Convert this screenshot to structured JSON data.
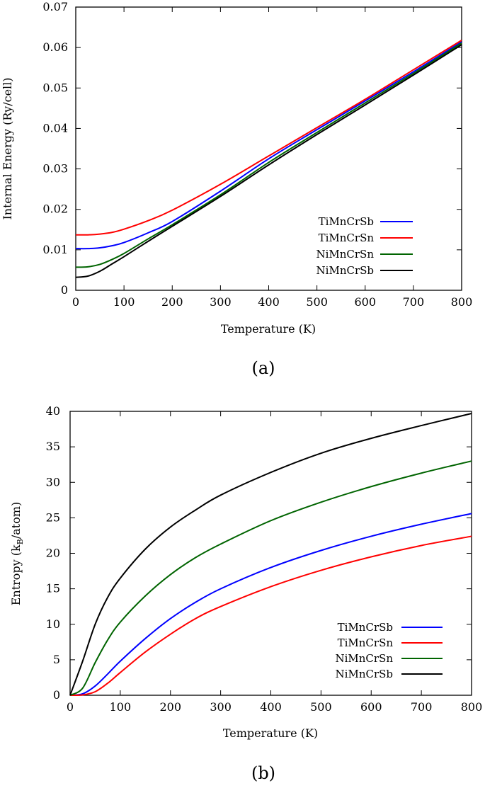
{
  "chart_data": [
    {
      "type": "line",
      "title": "",
      "xlabel": "Temperature (K)",
      "ylabel": "Internal Energy (Ry/cell)",
      "xlim": [
        0,
        800
      ],
      "ylim": [
        0,
        0.07
      ],
      "xticks": [
        "0",
        "100",
        "200",
        "300",
        "400",
        "500",
        "600",
        "700",
        "800"
      ],
      "yticks": [
        "0",
        "0.01",
        "0.02",
        "0.03",
        "0.04",
        "0.05",
        "0.06",
        "0.07"
      ],
      "legend_position": "bottom-right",
      "caption": "(a)",
      "series": [
        {
          "name": "TiMnCrSb",
          "color": "#0000ff",
          "x": [
            0,
            25,
            50,
            75,
            100,
            150,
            200,
            300,
            400,
            500,
            600,
            700,
            800
          ],
          "y": [
            0.0103,
            0.0103,
            0.0105,
            0.011,
            0.0118,
            0.0142,
            0.017,
            0.0245,
            0.0325,
            0.0397,
            0.0468,
            0.054,
            0.0614
          ]
        },
        {
          "name": "TiMnCrSn",
          "color": "#ff0000",
          "x": [
            0,
            25,
            50,
            75,
            100,
            150,
            200,
            300,
            400,
            500,
            600,
            700,
            800
          ],
          "y": [
            0.0137,
            0.0137,
            0.0139,
            0.0143,
            0.0151,
            0.0172,
            0.0198,
            0.0262,
            0.0332,
            0.0402,
            0.0472,
            0.0545,
            0.0618
          ]
        },
        {
          "name": "NiMnCrSn",
          "color": "#006400",
          "x": [
            0,
            25,
            50,
            75,
            100,
            150,
            200,
            300,
            400,
            500,
            600,
            700,
            800
          ],
          "y": [
            0.0057,
            0.0058,
            0.0064,
            0.0076,
            0.0091,
            0.0127,
            0.0162,
            0.0236,
            0.0316,
            0.039,
            0.0463,
            0.0536,
            0.0611
          ]
        },
        {
          "name": "NiMnCrSb",
          "color": "#000000",
          "x": [
            0,
            25,
            50,
            75,
            100,
            150,
            200,
            300,
            400,
            500,
            600,
            700,
            800
          ],
          "y": [
            0.0032,
            0.0035,
            0.0047,
            0.0065,
            0.0083,
            0.0121,
            0.0158,
            0.0232,
            0.031,
            0.0385,
            0.0458,
            0.0532,
            0.0607
          ]
        }
      ]
    },
    {
      "type": "line",
      "title": "",
      "xlabel": "Temperature (K)",
      "ylabel": "Entropy (k_B/atom)",
      "ylabel_main": "Entropy (k",
      "ylabel_sub": "B",
      "ylabel_tail": "/atom)",
      "xlim": [
        0,
        800
      ],
      "ylim": [
        0,
        40
      ],
      "xticks": [
        "0",
        "100",
        "200",
        "300",
        "400",
        "500",
        "600",
        "700",
        "800"
      ],
      "yticks": [
        "0",
        "5",
        "10",
        "15",
        "20",
        "25",
        "30",
        "35",
        "40"
      ],
      "legend_position": "bottom-right",
      "caption": "(b)",
      "series": [
        {
          "name": "TiMnCrSb",
          "color": "#0000ff",
          "x": [
            0,
            25,
            50,
            75,
            100,
            150,
            200,
            250,
            300,
            400,
            500,
            600,
            700,
            800
          ],
          "y": [
            0,
            0.2,
            1.3,
            3.0,
            4.8,
            8.0,
            10.8,
            13.1,
            15.0,
            18.0,
            20.4,
            22.4,
            24.1,
            25.6
          ]
        },
        {
          "name": "TiMnCrSn",
          "color": "#ff0000",
          "x": [
            0,
            25,
            50,
            75,
            100,
            150,
            200,
            250,
            300,
            400,
            500,
            600,
            700,
            800
          ],
          "y": [
            0,
            0.05,
            0.5,
            1.7,
            3.2,
            6.1,
            8.6,
            10.8,
            12.5,
            15.3,
            17.6,
            19.5,
            21.1,
            22.4
          ]
        },
        {
          "name": "NiMnCrSn",
          "color": "#006400",
          "x": [
            0,
            25,
            50,
            75,
            100,
            150,
            200,
            250,
            300,
            400,
            500,
            600,
            700,
            800
          ],
          "y": [
            0,
            1.0,
            4.6,
            7.8,
            10.3,
            14.0,
            17.0,
            19.4,
            21.3,
            24.6,
            27.2,
            29.4,
            31.3,
            33.0
          ]
        },
        {
          "name": "NiMnCrSb",
          "color": "#000000",
          "x": [
            0,
            25,
            50,
            75,
            100,
            150,
            200,
            250,
            300,
            400,
            500,
            600,
            700,
            800
          ],
          "y": [
            0,
            4.8,
            10.0,
            13.8,
            16.5,
            20.6,
            23.7,
            26.1,
            28.2,
            31.4,
            34.1,
            36.2,
            38.0,
            39.7
          ]
        }
      ]
    }
  ]
}
